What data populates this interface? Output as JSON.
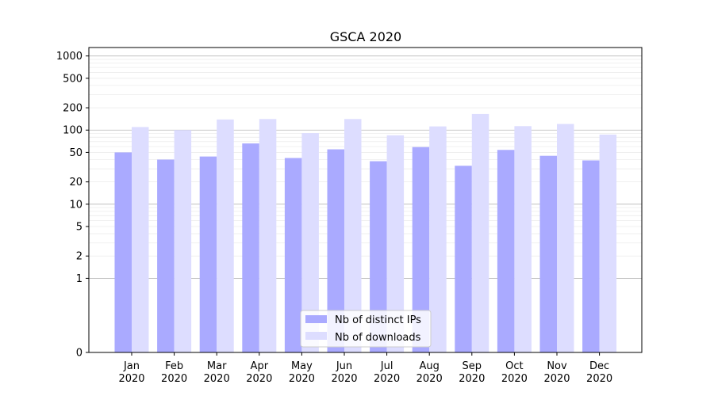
{
  "chart_data": {
    "type": "bar",
    "title": "GSCA 2020",
    "xlabel": "",
    "ylabel": "",
    "categories": [
      "Jan\n2020",
      "Feb\n2020",
      "Mar\n2020",
      "Apr\n2020",
      "May\n2020",
      "Jun\n2020",
      "Jul\n2020",
      "Aug\n2020",
      "Sep\n2020",
      "Oct\n2020",
      "Nov\n2020",
      "Dec\n2020"
    ],
    "series": [
      {
        "name": "Nb of distinct IPs",
        "color": "#aaaaff",
        "values": [
          50,
          40,
          44,
          66,
          42,
          55,
          38,
          59,
          33,
          54,
          45,
          39
        ]
      },
      {
        "name": "Nb of downloads",
        "color": "#ddddff",
        "values": [
          110,
          100,
          139,
          141,
          91,
          141,
          85,
          112,
          165,
          113,
          121,
          87
        ]
      }
    ],
    "yscale": "symlog",
    "ylim": [
      0,
      1300
    ],
    "yticks": [
      "0",
      "1",
      "2",
      "5",
      "10",
      "20",
      "50",
      "100",
      "200",
      "500",
      "1000"
    ],
    "grid": true,
    "legend_position": "lower center"
  }
}
